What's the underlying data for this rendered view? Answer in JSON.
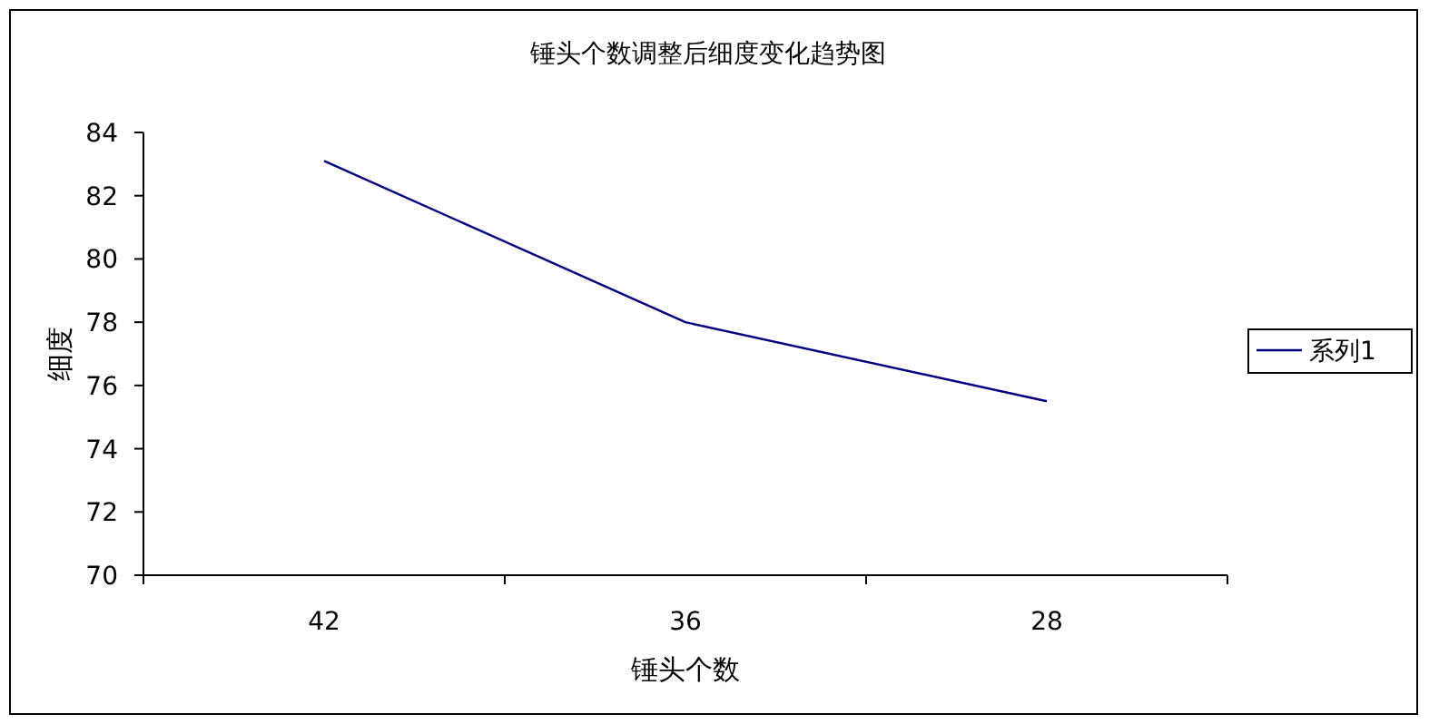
{
  "chart_data": {
    "type": "line",
    "title": "锤头个数调整后细度变化趋势图",
    "xlabel": "锤头个数",
    "ylabel": "细度",
    "categories": [
      "42",
      "36",
      "28"
    ],
    "series": [
      {
        "name": "系列1",
        "color": "#000080",
        "values": [
          83.1,
          78.0,
          75.5
        ]
      }
    ],
    "ylim": [
      70,
      84
    ],
    "yticks": [
      70,
      72,
      74,
      76,
      78,
      80,
      82,
      84
    ],
    "legend": "right",
    "marker": "none"
  }
}
